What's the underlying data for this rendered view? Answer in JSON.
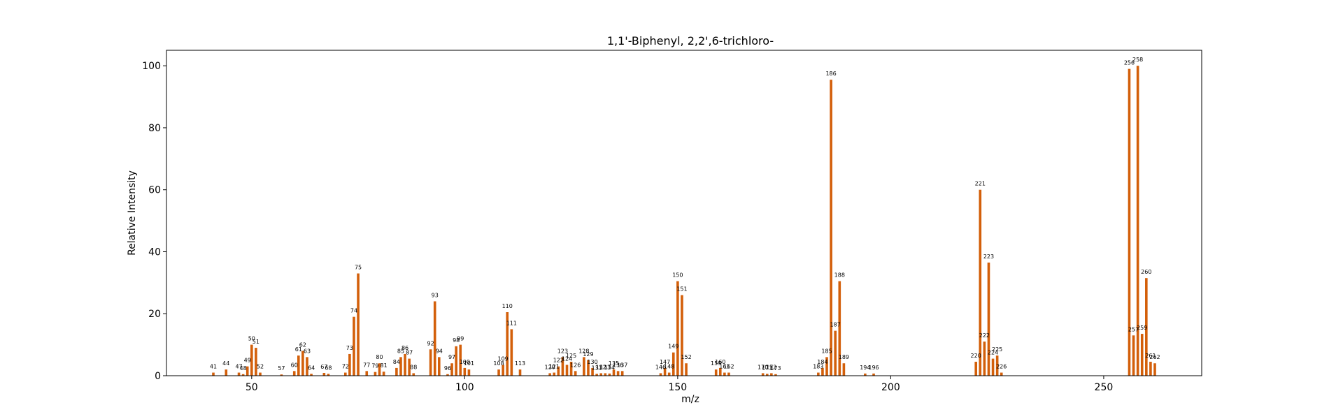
{
  "chart_data": {
    "type": "bar",
    "title": "1,1'-Biphenyl, 2,2',6-trichloro-",
    "xlabel": "m/z",
    "ylabel": "Relative Intensity",
    "xlim": [
      30,
      273
    ],
    "ylim": [
      0,
      105
    ],
    "xticks": [
      50,
      100,
      150,
      200,
      250
    ],
    "yticks": [
      0,
      20,
      40,
      60,
      80,
      100
    ],
    "grid": false,
    "bar_color": "#d35f0a",
    "peaks": [
      {
        "mz": 41,
        "intensity": 1.0
      },
      {
        "mz": 44,
        "intensity": 2.0
      },
      {
        "mz": 47,
        "intensity": 1.0
      },
      {
        "mz": 48,
        "intensity": 0.5
      },
      {
        "mz": 49,
        "intensity": 3.0
      },
      {
        "mz": 50,
        "intensity": 10.0
      },
      {
        "mz": 51,
        "intensity": 9.0
      },
      {
        "mz": 52,
        "intensity": 1.0
      },
      {
        "mz": 57,
        "intensity": 0.4
      },
      {
        "mz": 60,
        "intensity": 1.5
      },
      {
        "mz": 61,
        "intensity": 6.5
      },
      {
        "mz": 62,
        "intensity": 8.0
      },
      {
        "mz": 63,
        "intensity": 6.0
      },
      {
        "mz": 64,
        "intensity": 0.6
      },
      {
        "mz": 67,
        "intensity": 0.9
      },
      {
        "mz": 68,
        "intensity": 0.6
      },
      {
        "mz": 72,
        "intensity": 1.0
      },
      {
        "mz": 73,
        "intensity": 7.0
      },
      {
        "mz": 74,
        "intensity": 19.0
      },
      {
        "mz": 75,
        "intensity": 33.0
      },
      {
        "mz": 77,
        "intensity": 1.5
      },
      {
        "mz": 79,
        "intensity": 1.2
      },
      {
        "mz": 80,
        "intensity": 4.0
      },
      {
        "mz": 81,
        "intensity": 1.3
      },
      {
        "mz": 84,
        "intensity": 2.5
      },
      {
        "mz": 85,
        "intensity": 6.0
      },
      {
        "mz": 86,
        "intensity": 7.0
      },
      {
        "mz": 87,
        "intensity": 5.5
      },
      {
        "mz": 88,
        "intensity": 0.8
      },
      {
        "mz": 92,
        "intensity": 8.5
      },
      {
        "mz": 93,
        "intensity": 24.0
      },
      {
        "mz": 94,
        "intensity": 6.0
      },
      {
        "mz": 96,
        "intensity": 0.5
      },
      {
        "mz": 97,
        "intensity": 4.0
      },
      {
        "mz": 98,
        "intensity": 9.5
      },
      {
        "mz": 99,
        "intensity": 10.0
      },
      {
        "mz": 100,
        "intensity": 2.5
      },
      {
        "mz": 101,
        "intensity": 2.0
      },
      {
        "mz": 108,
        "intensity": 2.0
      },
      {
        "mz": 109,
        "intensity": 3.5
      },
      {
        "mz": 110,
        "intensity": 20.5
      },
      {
        "mz": 111,
        "intensity": 15.0
      },
      {
        "mz": 113,
        "intensity": 2.0
      },
      {
        "mz": 120,
        "intensity": 0.8
      },
      {
        "mz": 121,
        "intensity": 1.0
      },
      {
        "mz": 122,
        "intensity": 3.0
      },
      {
        "mz": 123,
        "intensity": 6.0
      },
      {
        "mz": 124,
        "intensity": 3.5
      },
      {
        "mz": 125,
        "intensity": 4.5
      },
      {
        "mz": 126,
        "intensity": 1.5
      },
      {
        "mz": 128,
        "intensity": 6.0
      },
      {
        "mz": 129,
        "intensity": 5.0
      },
      {
        "mz": 130,
        "intensity": 2.5
      },
      {
        "mz": 131,
        "intensity": 0.6
      },
      {
        "mz": 132,
        "intensity": 0.8
      },
      {
        "mz": 133,
        "intensity": 0.8
      },
      {
        "mz": 134,
        "intensity": 0.7
      },
      {
        "mz": 135,
        "intensity": 2.0
      },
      {
        "mz": 136,
        "intensity": 1.5
      },
      {
        "mz": 137,
        "intensity": 1.5
      },
      {
        "mz": 146,
        "intensity": 0.8
      },
      {
        "mz": 147,
        "intensity": 2.5
      },
      {
        "mz": 148,
        "intensity": 1.0
      },
      {
        "mz": 149,
        "intensity": 7.5
      },
      {
        "mz": 150,
        "intensity": 30.5
      },
      {
        "mz": 151,
        "intensity": 26.0
      },
      {
        "mz": 152,
        "intensity": 4.0
      },
      {
        "mz": 159,
        "intensity": 2.0
      },
      {
        "mz": 160,
        "intensity": 2.5
      },
      {
        "mz": 161,
        "intensity": 1.0
      },
      {
        "mz": 162,
        "intensity": 1.0
      },
      {
        "mz": 170,
        "intensity": 0.8
      },
      {
        "mz": 171,
        "intensity": 0.6
      },
      {
        "mz": 172,
        "intensity": 0.8
      },
      {
        "mz": 173,
        "intensity": 0.5
      },
      {
        "mz": 183,
        "intensity": 1.0
      },
      {
        "mz": 184,
        "intensity": 2.5
      },
      {
        "mz": 185,
        "intensity": 6.0
      },
      {
        "mz": 186,
        "intensity": 95.5
      },
      {
        "mz": 187,
        "intensity": 14.5
      },
      {
        "mz": 188,
        "intensity": 30.5
      },
      {
        "mz": 189,
        "intensity": 4.0
      },
      {
        "mz": 194,
        "intensity": 0.7
      },
      {
        "mz": 196,
        "intensity": 0.7
      },
      {
        "mz": 220,
        "intensity": 4.5
      },
      {
        "mz": 221,
        "intensity": 60.0
      },
      {
        "mz": 222,
        "intensity": 11.0
      },
      {
        "mz": 223,
        "intensity": 36.5
      },
      {
        "mz": 224,
        "intensity": 5.5
      },
      {
        "mz": 225,
        "intensity": 6.5
      },
      {
        "mz": 226,
        "intensity": 1.0
      },
      {
        "mz": 256,
        "intensity": 99.0
      },
      {
        "mz": 257,
        "intensity": 13.0
      },
      {
        "mz": 258,
        "intensity": 100.0
      },
      {
        "mz": 259,
        "intensity": 13.5
      },
      {
        "mz": 260,
        "intensity": 31.5
      },
      {
        "mz": 261,
        "intensity": 4.5
      },
      {
        "mz": 262,
        "intensity": 4.0
      }
    ]
  }
}
